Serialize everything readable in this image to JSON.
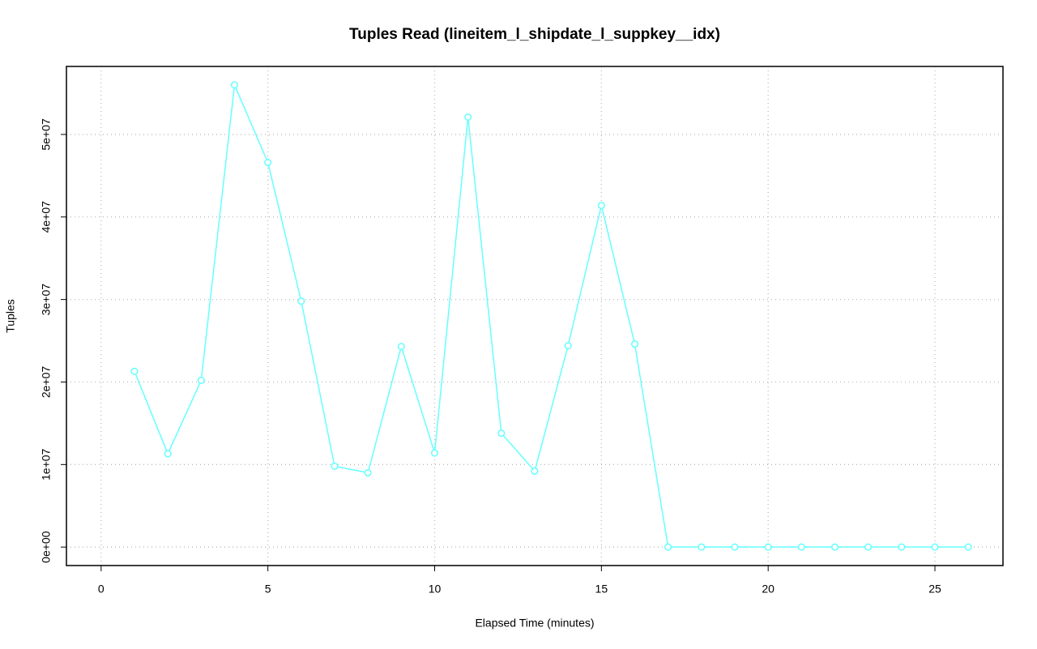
{
  "chart_data": {
    "type": "line",
    "title": "Tuples Read (lineitem_l_shipdate_l_suppkey__idx)",
    "x_label": "Elapsed Time (minutes)",
    "y_label": "Tuples",
    "x": [
      1,
      2,
      3,
      4,
      5,
      6,
      7,
      8,
      9,
      10,
      11,
      12,
      13,
      14,
      15,
      16,
      17,
      18,
      19,
      20,
      21,
      22,
      23,
      24,
      25,
      26
    ],
    "series": [
      {
        "color": "#66ffff",
        "values": [
          21300000,
          11300000,
          20200000,
          56000000,
          46600000,
          29800000,
          9800000,
          9000000,
          24300000,
          11400000,
          52100000,
          13800000,
          9200000,
          24400000,
          41400000,
          24600000,
          0,
          0,
          0,
          0,
          0,
          0,
          0,
          0,
          0,
          0
        ]
      }
    ],
    "xlim": [
      -1.04,
      27.04
    ],
    "ylim": [
      -2240000,
      58240000
    ],
    "xticks": [
      0,
      5,
      10,
      15,
      20,
      25
    ],
    "yticks": [
      {
        "value": 0,
        "label": "0e+00"
      },
      {
        "value": 10000000,
        "label": "1e+07"
      },
      {
        "value": 20000000,
        "label": "2e+07"
      },
      {
        "value": 30000000,
        "label": "3e+07"
      },
      {
        "value": 40000000,
        "label": "4e+07"
      },
      {
        "value": 50000000,
        "label": "5e+07"
      }
    ],
    "grid": true
  }
}
